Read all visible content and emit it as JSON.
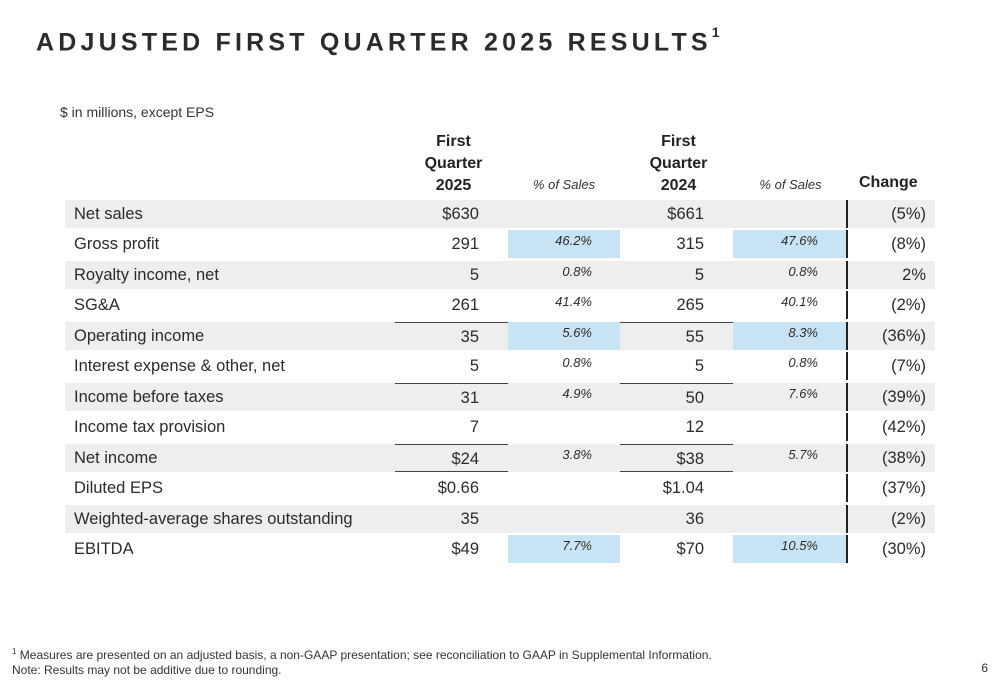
{
  "title": "ADJUSTED FIRST QUARTER 2025 RESULTS",
  "title_sup": "1",
  "units_note": "$ in millions, except EPS",
  "headers": {
    "col1": [
      "First",
      "Quarter",
      "2025"
    ],
    "pct1": "% of Sales",
    "col2": [
      "First",
      "Quarter",
      "2024"
    ],
    "pct2": "% of Sales",
    "change": "Change"
  },
  "rows": [
    {
      "label": "Net sales",
      "v2025": "$630",
      "pct2025": "",
      "v2024": "$661",
      "pct2024": "",
      "change": "(5%)",
      "shaded": true
    },
    {
      "label": "Gross profit",
      "v2025": "291",
      "pct2025": "46.2%",
      "v2024": "315",
      "pct2024": "47.6%",
      "change": "(8%)",
      "shaded": false
    },
    {
      "label": "Royalty income, net",
      "v2025": "5",
      "pct2025": "0.8%",
      "v2024": "5",
      "pct2024": "0.8%",
      "change": "2%",
      "shaded": true
    },
    {
      "label": "SG&A",
      "v2025": "261",
      "pct2025": "41.4%",
      "v2024": "265",
      "pct2024": "40.1%",
      "change": "(2%)",
      "shaded": false
    },
    {
      "label": "Operating income",
      "v2025": "35",
      "pct2025": "5.6%",
      "v2024": "55",
      "pct2024": "8.3%",
      "change": "(36%)",
      "shaded": true
    },
    {
      "label": "Interest expense & other, net",
      "v2025": "5",
      "pct2025": "0.8%",
      "v2024": "5",
      "pct2024": "0.8%",
      "change": "(7%)",
      "shaded": false
    },
    {
      "label": "Income before taxes",
      "v2025": "31",
      "pct2025": "4.9%",
      "v2024": "50",
      "pct2024": "7.6%",
      "change": "(39%)",
      "shaded": true
    },
    {
      "label": "Income tax provision",
      "v2025": "7",
      "pct2025": "",
      "v2024": "12",
      "pct2024": "",
      "change": "(42%)",
      "shaded": false
    },
    {
      "label": "Net income",
      "v2025": "$24",
      "pct2025": "3.8%",
      "v2024": "$38",
      "pct2024": "5.7%",
      "change": "(38%)",
      "shaded": true
    },
    {
      "label": "Diluted EPS",
      "v2025": "$0.66",
      "pct2025": "",
      "v2024": "$1.04",
      "pct2024": "",
      "change": "(37%)",
      "shaded": false
    },
    {
      "label": "Weighted-average shares outstanding",
      "v2025": "35",
      "pct2025": "",
      "v2024": "36",
      "pct2024": "",
      "change": "(2%)",
      "shaded": true
    },
    {
      "label": "EBITDA",
      "v2025": "$49",
      "pct2025": "7.7%",
      "v2024": "$70",
      "pct2024": "10.5%",
      "change": "(30%)",
      "shaded": false
    }
  ],
  "highlight_color": "#c8e4f4",
  "shade_color": "#eeeeee",
  "footnote_sup": "1",
  "footnote": "Measures are presented on an adjusted basis, a non-GAAP presentation; see reconciliation to GAAP in Supplemental Information.",
  "note": "Note: Results may not be additive due to rounding.",
  "page_number": "6"
}
